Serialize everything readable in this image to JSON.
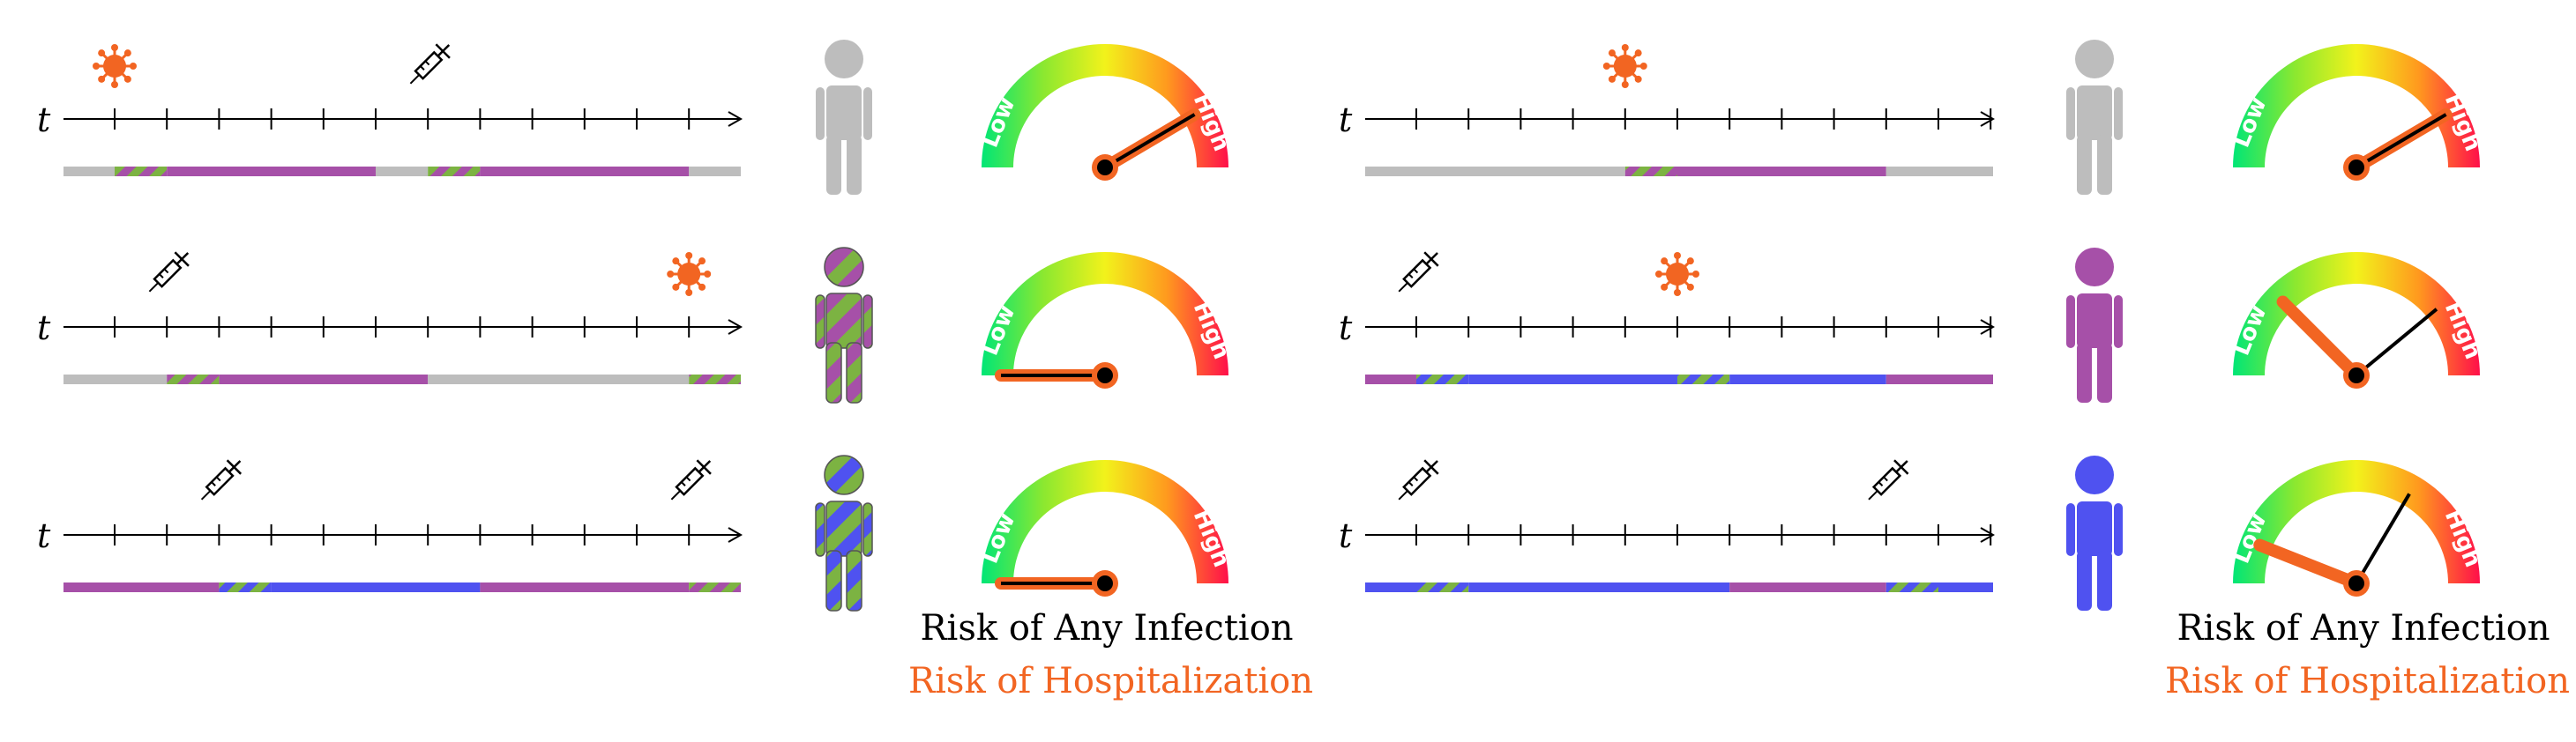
{
  "axis_symbol": "t",
  "tick_count": 12,
  "colors": {
    "gray": "#BDBDBD",
    "purple": "#A650A8",
    "blue": "#4F52F0",
    "green": "#7CB342",
    "orange": "#F26522",
    "black": "#000000"
  },
  "gauge_labels": {
    "low": "Low",
    "high": "High"
  },
  "legend": {
    "any_infection": "Risk of Any Infection",
    "hospitalization": "Risk of Hospitalization"
  },
  "panels": [
    {
      "rows": [
        {
          "events": [
            {
              "type": "virus-icon",
              "tick": 0
            },
            {
              "type": "syringe-icon",
              "tick": 6
            }
          ],
          "segments": [
            {
              "from": -1,
              "to": 0,
              "color": "gray"
            },
            {
              "from": 0,
              "to": 1,
              "color": "striped-purple"
            },
            {
              "from": 1,
              "to": 5,
              "color": "purple"
            },
            {
              "from": 5,
              "to": 6,
              "color": "gray"
            },
            {
              "from": 6,
              "to": 7,
              "color": "striped-purple"
            },
            {
              "from": 7,
              "to": 11,
              "color": "purple"
            },
            {
              "from": 11,
              "to": 12,
              "color": "gray"
            }
          ],
          "person": "gray",
          "gauge": {
            "infection": 0.83,
            "hospitalization": 0.83
          }
        },
        {
          "events": [
            {
              "type": "syringe-icon",
              "tick": 1
            },
            {
              "type": "virus-icon",
              "tick": 11
            }
          ],
          "segments": [
            {
              "from": -1,
              "to": 1,
              "color": "gray"
            },
            {
              "from": 1,
              "to": 2,
              "color": "striped-purple"
            },
            {
              "from": 2,
              "to": 6,
              "color": "purple"
            },
            {
              "from": 6,
              "to": 11,
              "color": "gray"
            },
            {
              "from": 11,
              "to": 12,
              "color": "striped-purple"
            }
          ],
          "person": "striped-purple",
          "gauge": {
            "infection": 0.0,
            "hospitalization": 0.0
          }
        },
        {
          "events": [
            {
              "type": "syringe-icon",
              "tick": 2
            },
            {
              "type": "syringe-icon",
              "tick": 11
            }
          ],
          "segments": [
            {
              "from": -1,
              "to": 2,
              "color": "purple"
            },
            {
              "from": 2,
              "to": 3,
              "color": "striped-blue"
            },
            {
              "from": 3,
              "to": 7,
              "color": "blue"
            },
            {
              "from": 7,
              "to": 11,
              "color": "purple"
            },
            {
              "from": 11,
              "to": 12,
              "color": "striped-purple"
            }
          ],
          "person": "striped-blue",
          "gauge": {
            "infection": 0.0,
            "hospitalization": 0.0
          }
        }
      ]
    },
    {
      "rows": [
        {
          "events": [
            {
              "type": "virus-icon",
              "tick": 4
            }
          ],
          "segments": [
            {
              "from": -1,
              "to": 4,
              "color": "gray"
            },
            {
              "from": 4,
              "to": 5,
              "color": "striped-purple"
            },
            {
              "from": 5,
              "to": 9,
              "color": "purple"
            },
            {
              "from": 9,
              "to": 12,
              "color": "gray"
            }
          ],
          "person": "gray",
          "gauge": {
            "infection": 0.83,
            "hospitalization": 0.83
          }
        },
        {
          "events": [
            {
              "type": "syringe-icon",
              "tick": 0
            },
            {
              "type": "virus-icon",
              "tick": 5
            }
          ],
          "segments": [
            {
              "from": -1,
              "to": 0,
              "color": "purple"
            },
            {
              "from": 0,
              "to": 1,
              "color": "striped-blue"
            },
            {
              "from": 1,
              "to": 5,
              "color": "blue"
            },
            {
              "from": 5,
              "to": 6,
              "color": "striped-blue"
            },
            {
              "from": 6,
              "to": 9,
              "color": "blue"
            },
            {
              "from": 9,
              "to": 12,
              "color": "purple"
            }
          ],
          "person": "purple",
          "gauge": {
            "infection": 0.78,
            "hospitalization": 0.25
          }
        },
        {
          "events": [
            {
              "type": "syringe-icon",
              "tick": 0
            },
            {
              "type": "syringe-icon",
              "tick": 9
            }
          ],
          "segments": [
            {
              "from": -1,
              "to": 0,
              "color": "blue"
            },
            {
              "from": 0,
              "to": 1,
              "color": "striped-blue"
            },
            {
              "from": 1,
              "to": 6,
              "color": "blue"
            },
            {
              "from": 6,
              "to": 9,
              "color": "purple"
            },
            {
              "from": 9,
              "to": 10,
              "color": "striped-blue"
            },
            {
              "from": 10,
              "to": 12,
              "color": "blue"
            }
          ],
          "person": "blue",
          "gauge": {
            "infection": 0.67,
            "hospitalization": 0.12
          }
        }
      ]
    }
  ]
}
